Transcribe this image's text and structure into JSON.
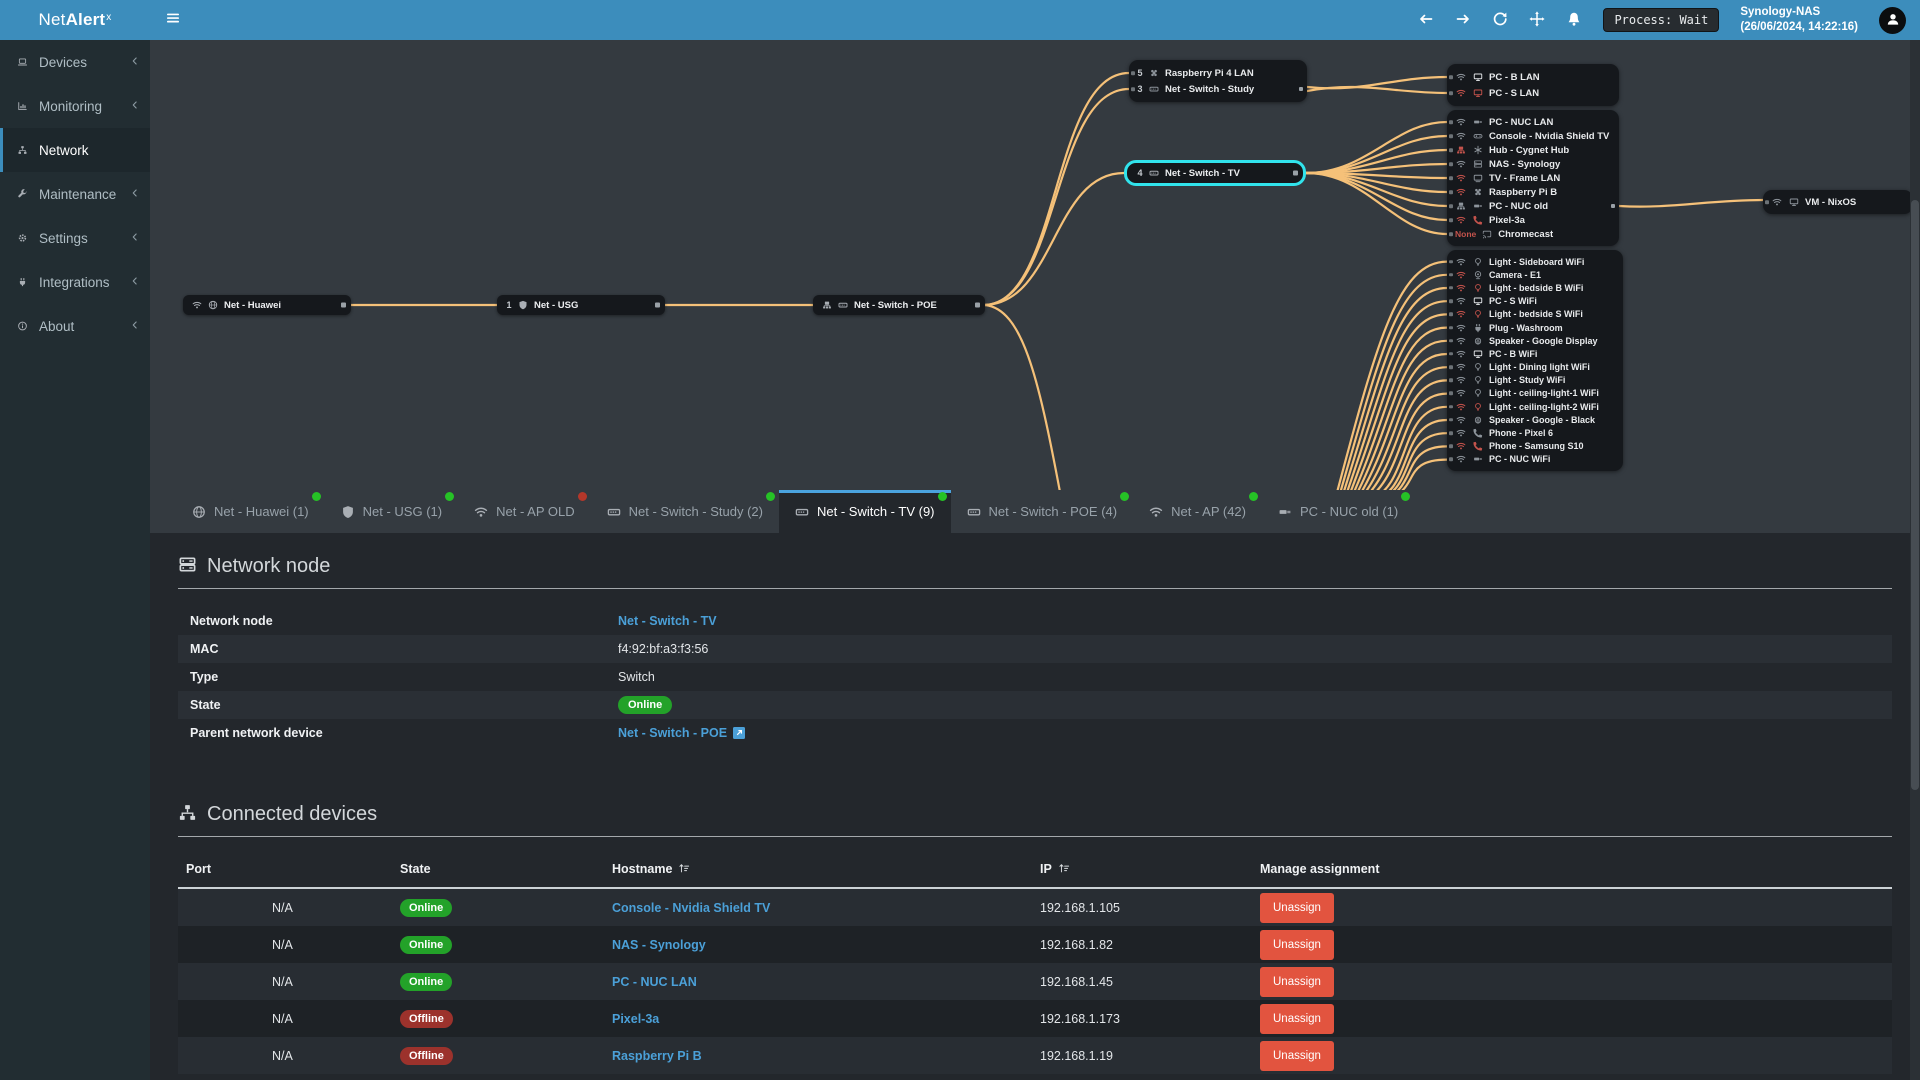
{
  "app": {
    "name_prefix": "Net",
    "name_bold": "Alert",
    "name_sup": "x"
  },
  "topbar": {
    "icons": [
      "arrow-left",
      "arrow-right",
      "refresh",
      "move",
      "bell"
    ],
    "process_label": "Process: Wait",
    "host": "Synology-NAS",
    "timestamp": "(26/06/2024, 14:22:16)"
  },
  "sidebar": {
    "items": [
      {
        "label": "Devices",
        "icon": "laptop",
        "chev": "1",
        "active": ""
      },
      {
        "label": "Monitoring",
        "icon": "chart",
        "chev": "1",
        "active": ""
      },
      {
        "label": "Network",
        "icon": "sitemap",
        "chev": "",
        "active": "1"
      },
      {
        "label": "Maintenance",
        "icon": "wrench",
        "chev": "1",
        "active": ""
      },
      {
        "label": "Settings",
        "icon": "gear",
        "chev": "1",
        "active": ""
      },
      {
        "label": "Integrations",
        "icon": "plug",
        "chev": "1",
        "active": ""
      },
      {
        "label": "About",
        "icon": "info",
        "chev": "1",
        "active": ""
      }
    ]
  },
  "diagram": {
    "edge_color": "#f5c179",
    "selected_color": "#31e3ec",
    "huawei": {
      "icon1": "wifi",
      "icon2": "globe",
      "label": "Net - Huawei"
    },
    "usg": {
      "port": "1",
      "icon2": "shield",
      "label": "Net - USG"
    },
    "poe": {
      "icon1": "eth",
      "icon2": "switch",
      "label": "Net - Switch - POE"
    },
    "selected": {
      "port": "4",
      "icon": "switch",
      "label": "Net - Switch - TV"
    },
    "study_rows": [
      {
        "port": "5",
        "di": "pi",
        "dc": "g",
        "name": "Raspberry Pi 4 LAN",
        "sq": ""
      },
      {
        "port": "3",
        "di": "switch",
        "dc": "g",
        "name": "Net - Switch - Study",
        "sq": "1"
      }
    ],
    "pcb_rows": [
      {
        "ci": "wifi",
        "cc": "g",
        "di": "monitor",
        "dc": "w",
        "name": "PC - B LAN"
      },
      {
        "ci": "wifi",
        "cc": "r",
        "di": "monitor",
        "dc": "r",
        "name": "PC - S LAN"
      }
    ],
    "tv_rows": [
      {
        "ci": "wifi",
        "cc": "g",
        "di": "usb",
        "dc": "g",
        "name": "PC - NUC LAN"
      },
      {
        "ci": "wifi",
        "cc": "g",
        "di": "gamepad",
        "dc": "g",
        "name": "Console - Nvidia Shield TV"
      },
      {
        "ci": "eth",
        "cc": "r",
        "di": "hub",
        "dc": "g",
        "name": "Hub - Cygnet Hub"
      },
      {
        "ci": "wifi",
        "cc": "g",
        "di": "nas",
        "dc": "g",
        "name": "NAS - Synology"
      },
      {
        "ci": "wifi",
        "cc": "r",
        "di": "tv",
        "dc": "g",
        "name": "TV - Frame LAN"
      },
      {
        "ci": "wifi",
        "cc": "r",
        "di": "pi",
        "dc": "g",
        "name": "Raspberry Pi B"
      },
      {
        "ci": "eth",
        "cc": "g",
        "di": "usb",
        "dc": "g",
        "name": "PC - NUC old",
        "sq": "1"
      },
      {
        "ci": "wifi",
        "cc": "r",
        "di": "phone",
        "dc": "r",
        "name": "Pixel-3a"
      },
      {
        "cl": "None",
        "cc": "r",
        "di": "cast",
        "dc": "g",
        "name": "Chromecast"
      }
    ],
    "ap_rows": [
      {
        "ci": "wifi",
        "cc": "g",
        "di": "bulb",
        "dc": "g",
        "name": "Light - Sideboard WiFi"
      },
      {
        "ci": "wifi",
        "cc": "r",
        "di": "camera",
        "dc": "g",
        "name": "Camera - E1"
      },
      {
        "ci": "wifi",
        "cc": "r",
        "di": "bulb",
        "dc": "r",
        "name": "Light - bedside B WiFi"
      },
      {
        "ci": "wifi",
        "cc": "g",
        "di": "monitor",
        "dc": "w",
        "name": "PC - S WiFi"
      },
      {
        "ci": "wifi",
        "cc": "r",
        "di": "bulb",
        "dc": "r",
        "name": "Light - bedside S WiFi"
      },
      {
        "ci": "wifi",
        "cc": "g",
        "di": "plug",
        "dc": "g",
        "name": "Plug - Washroom"
      },
      {
        "ci": "wifi",
        "cc": "g",
        "di": "speaker",
        "dc": "g",
        "name": "Speaker - Google Display"
      },
      {
        "ci": "wifi",
        "cc": "g",
        "di": "monitor",
        "dc": "w",
        "name": "PC - B WiFi"
      },
      {
        "ci": "wifi",
        "cc": "g",
        "di": "bulb",
        "dc": "g",
        "name": "Light - Dining light WiFi"
      },
      {
        "ci": "wifi",
        "cc": "g",
        "di": "bulb",
        "dc": "g",
        "name": "Light - Study WiFi"
      },
      {
        "ci": "wifi",
        "cc": "g",
        "di": "bulb",
        "dc": "g",
        "name": "Light - ceiling-light-1 WiFi"
      },
      {
        "ci": "wifi",
        "cc": "r",
        "di": "bulb",
        "dc": "r",
        "name": "Light - ceiling-light-2 WiFi"
      },
      {
        "ci": "wifi",
        "cc": "g",
        "di": "speaker",
        "dc": "g",
        "name": "Speaker - Google - Black"
      },
      {
        "ci": "wifi",
        "cc": "g",
        "di": "phone",
        "dc": "g",
        "name": "Phone - Pixel 6"
      },
      {
        "ci": "wifi",
        "cc": "r",
        "di": "phone",
        "dc": "r",
        "name": "Phone - Samsung S10"
      },
      {
        "ci": "wifi",
        "cc": "g",
        "di": "usb",
        "dc": "g",
        "name": "PC - NUC WiFi"
      }
    ],
    "vm_rows": [
      {
        "ci": "wifi",
        "cc": "g",
        "di": "monitor",
        "dc": "g",
        "name": "VM - NixOS"
      }
    ]
  },
  "tabs": [
    {
      "icon": "globe",
      "label": "Net - Huawei (1)",
      "dot": "green",
      "active": ""
    },
    {
      "icon": "shield",
      "label": "Net - USG (1)",
      "dot": "green",
      "active": ""
    },
    {
      "icon": "wifi",
      "label": "Net - AP OLD",
      "dot": "red",
      "active": ""
    },
    {
      "icon": "switch",
      "label": "Net - Switch - Study (2)",
      "dot": "green",
      "active": ""
    },
    {
      "icon": "switch",
      "label": "Net - Switch - TV (9)",
      "dot": "green",
      "active": "1"
    },
    {
      "icon": "switch",
      "label": "Net - Switch - POE (4)",
      "dot": "green",
      "active": ""
    },
    {
      "icon": "wifi",
      "label": "Net - AP (42)",
      "dot": "green",
      "active": ""
    },
    {
      "icon": "usb",
      "label": "PC - NUC old (1)",
      "dot": "green",
      "active": ""
    }
  ],
  "node_section": {
    "title": "Network node",
    "rows": [
      {
        "label": "Network node",
        "value": "Net - Switch - TV",
        "type": "link"
      },
      {
        "label": "MAC",
        "value": "f4:92:bf:a3:f3:56",
        "type": "plain"
      },
      {
        "label": "Type",
        "value": "Switch",
        "type": "plain"
      },
      {
        "label": "State",
        "value": "Online",
        "type": "badge"
      },
      {
        "label": "Parent network device",
        "value": "Net - Switch - POE",
        "type": "link-ext"
      }
    ]
  },
  "connected_section": {
    "title": "Connected devices",
    "columns": {
      "port": "Port",
      "state": "State",
      "hostname": "Hostname",
      "ip": "IP",
      "manage": "Manage assignment"
    },
    "unassign_label": "Unassign",
    "rows": [
      {
        "port": "N/A",
        "state": "Online",
        "hostname": "Console - Nvidia Shield TV",
        "ip": "192.168.1.105"
      },
      {
        "port": "N/A",
        "state": "Online",
        "hostname": "NAS - Synology",
        "ip": "192.168.1.82"
      },
      {
        "port": "N/A",
        "state": "Online",
        "hostname": "PC - NUC LAN",
        "ip": "192.168.1.45"
      },
      {
        "port": "N/A",
        "state": "Offline",
        "hostname": "Pixel-3a",
        "ip": "192.168.1.173"
      },
      {
        "port": "N/A",
        "state": "Offline",
        "hostname": "Raspberry Pi B",
        "ip": "192.168.1.19"
      }
    ]
  },
  "colors": {
    "accent": "#3c8dbc",
    "edge": "#f5c179",
    "selected": "#31e3ec",
    "online": "#23a229",
    "offline": "#9c322c",
    "danger": "#e2543f",
    "link": "#4ba0d8",
    "dot_green": "#26c226",
    "dot_red": "#b4372a"
  }
}
